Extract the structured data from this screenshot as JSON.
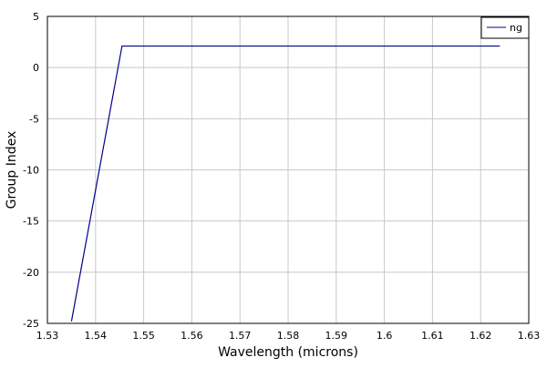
{
  "chart_data": {
    "type": "line",
    "title": "",
    "xlabel": "Wavelength (microns)",
    "ylabel": "Group Index",
    "xlim": [
      1.53,
      1.63
    ],
    "ylim": [
      -25,
      5
    ],
    "x_ticks": [
      "1.53",
      "1.54",
      "1.55",
      "1.56",
      "1.57",
      "1.58",
      "1.59",
      "1.6",
      "1.61",
      "1.62",
      "1.63"
    ],
    "y_ticks": [
      "5",
      "0",
      "-5",
      "-10",
      "-15",
      "-20",
      "-25"
    ],
    "grid": true,
    "legend": {
      "placement": "top-right",
      "entries": [
        "ng"
      ]
    },
    "series": [
      {
        "name": "ng",
        "color": "#00008b",
        "x": [
          1.535,
          1.5455,
          1.624
        ],
        "y": [
          -24.8,
          2.1,
          2.1
        ]
      }
    ]
  }
}
